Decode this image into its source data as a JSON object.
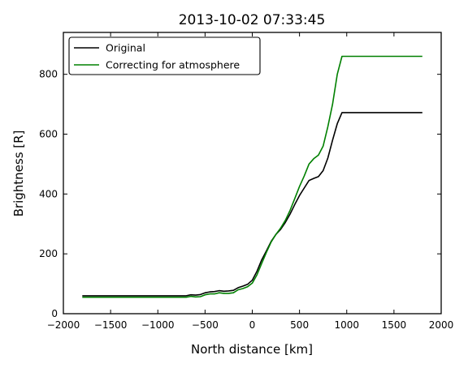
{
  "chart_data": {
    "type": "line",
    "title": "2013-10-02 07:33:45",
    "xlabel": "North distance [km]",
    "ylabel": "Brightness [R]",
    "xlim": [
      -2000,
      2000
    ],
    "ylim": [
      0,
      940
    ],
    "xticks": [
      -2000,
      -1500,
      -1000,
      -500,
      0,
      500,
      1000,
      1500,
      2000
    ],
    "xtick_labels": [
      "−2000",
      "−1500",
      "−1000",
      "−500",
      "0",
      "500",
      "1000",
      "1500",
      "2000"
    ],
    "yticks": [
      0,
      200,
      400,
      600,
      800
    ],
    "ytick_labels": [
      "0",
      "200",
      "400",
      "600",
      "800"
    ],
    "grid": false,
    "legend_position": "top-left",
    "series": [
      {
        "name": "Original",
        "color": "#000000",
        "x": [
          -1800,
          -1500,
          -1000,
          -750,
          -700,
          -650,
          -600,
          -550,
          -500,
          -450,
          -400,
          -350,
          -300,
          -250,
          -200,
          -150,
          -100,
          -50,
          0,
          50,
          100,
          150,
          200,
          250,
          300,
          350,
          400,
          450,
          500,
          550,
          600,
          650,
          700,
          750,
          800,
          850,
          900,
          950,
          1000,
          1050,
          1100,
          1200,
          1500,
          1800
        ],
        "y": [
          60,
          60,
          60,
          60,
          60,
          63,
          62,
          64,
          70,
          73,
          74,
          77,
          75,
          76,
          78,
          87,
          92,
          98,
          112,
          142,
          180,
          210,
          242,
          265,
          282,
          305,
          333,
          365,
          395,
          420,
          445,
          452,
          458,
          478,
          520,
          580,
          635,
          672,
          672,
          672,
          672,
          672,
          672,
          672
        ]
      },
      {
        "name": "Correcting for atmosphere",
        "color": "#008000",
        "x": [
          -1800,
          -1500,
          -1000,
          -750,
          -700,
          -650,
          -600,
          -550,
          -500,
          -450,
          -400,
          -350,
          -300,
          -250,
          -200,
          -150,
          -100,
          -50,
          0,
          50,
          100,
          150,
          200,
          250,
          300,
          350,
          400,
          450,
          500,
          550,
          600,
          650,
          700,
          750,
          800,
          850,
          900,
          950,
          1000,
          1050,
          1100,
          1200,
          1500,
          1800
        ],
        "y": [
          55,
          55,
          55,
          55,
          55,
          58,
          56,
          57,
          63,
          66,
          66,
          70,
          68,
          68,
          70,
          80,
          84,
          90,
          102,
          130,
          168,
          205,
          240,
          265,
          286,
          312,
          345,
          385,
          425,
          460,
          500,
          518,
          530,
          560,
          625,
          700,
          800,
          860,
          860,
          860,
          860,
          860,
          860,
          860
        ]
      }
    ]
  }
}
